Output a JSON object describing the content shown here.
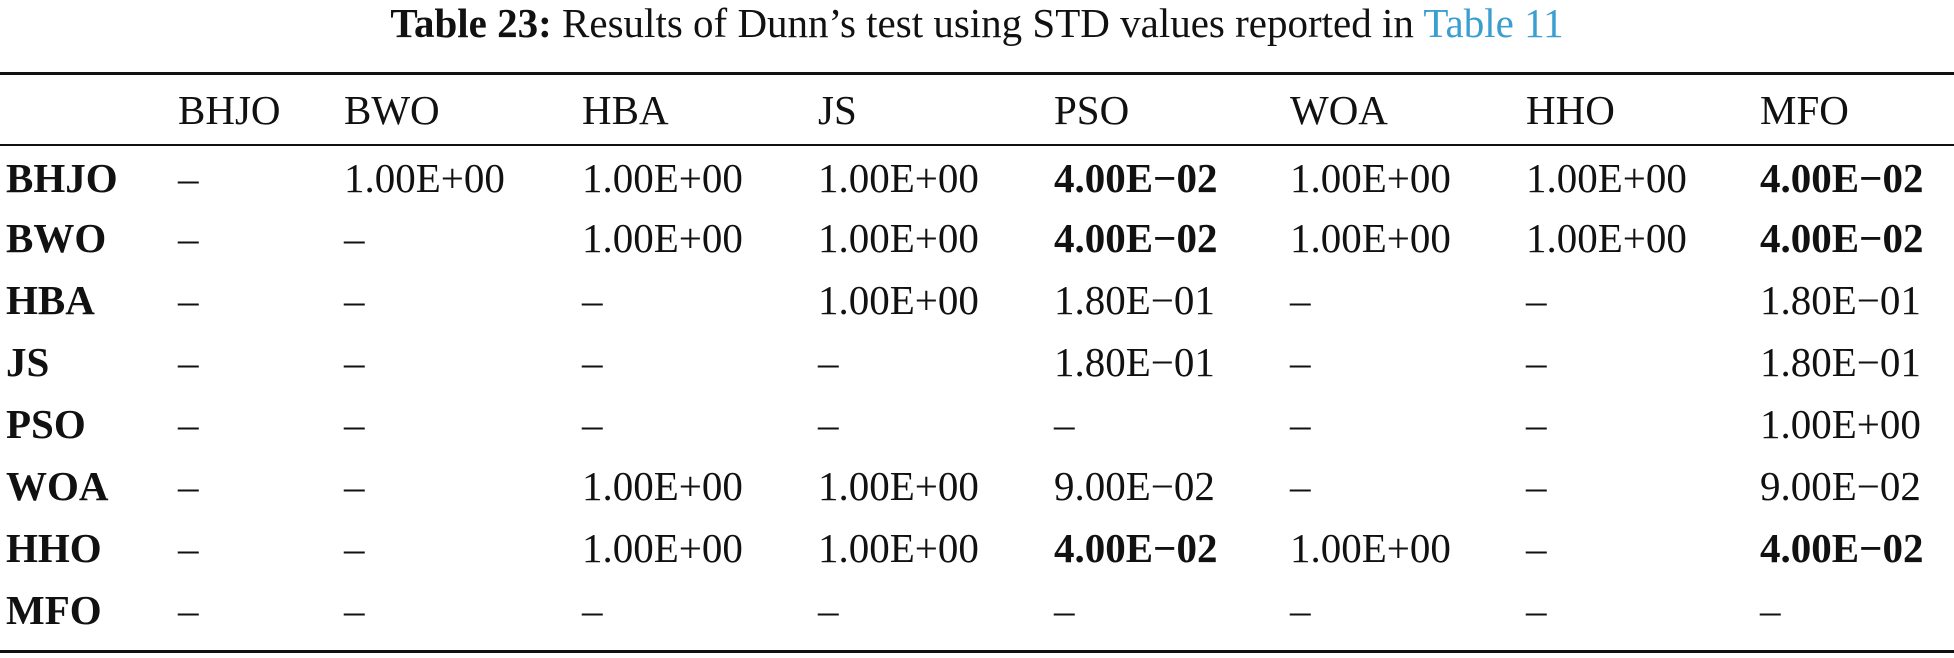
{
  "caption": {
    "label": "Table 23:",
    "text": " Results of Dunn’s test using STD values reported in ",
    "link": "Table 11"
  },
  "header": [
    "",
    "BHJO",
    "BWO",
    "HBA",
    "JS",
    "PSO",
    "WOA",
    "HHO",
    "MFO"
  ],
  "rows": [
    {
      "name": "BHJO",
      "cells": [
        "–",
        "1.00E+00",
        "1.00E+00",
        "1.00E+00",
        "4.00E−02",
        "1.00E+00",
        "1.00E+00",
        "4.00E−02"
      ]
    },
    {
      "name": "BWO",
      "cells": [
        "–",
        "–",
        "1.00E+00",
        "1.00E+00",
        "4.00E−02",
        "1.00E+00",
        "1.00E+00",
        "4.00E−02"
      ]
    },
    {
      "name": "HBA",
      "cells": [
        "–",
        "–",
        "–",
        "1.00E+00",
        "1.80E−01",
        "–",
        "–",
        "1.80E−01"
      ]
    },
    {
      "name": "JS",
      "cells": [
        "–",
        "–",
        "–",
        "–",
        "1.80E−01",
        "–",
        "–",
        "1.80E−01"
      ]
    },
    {
      "name": "PSO",
      "cells": [
        "–",
        "–",
        "–",
        "–",
        "–",
        "–",
        "–",
        "1.00E+00"
      ]
    },
    {
      "name": "WOA",
      "cells": [
        "–",
        "–",
        "1.00E+00",
        "1.00E+00",
        "9.00E−02",
        "–",
        "–",
        "9.00E−02"
      ]
    },
    {
      "name": "HHO",
      "cells": [
        "–",
        "–",
        "1.00E+00",
        "1.00E+00",
        "4.00E−02",
        "1.00E+00",
        "–",
        "4.00E−02"
      ]
    },
    {
      "name": "MFO",
      "cells": [
        "–",
        "–",
        "–",
        "–",
        "–",
        "–",
        "–",
        "–"
      ]
    }
  ]
}
